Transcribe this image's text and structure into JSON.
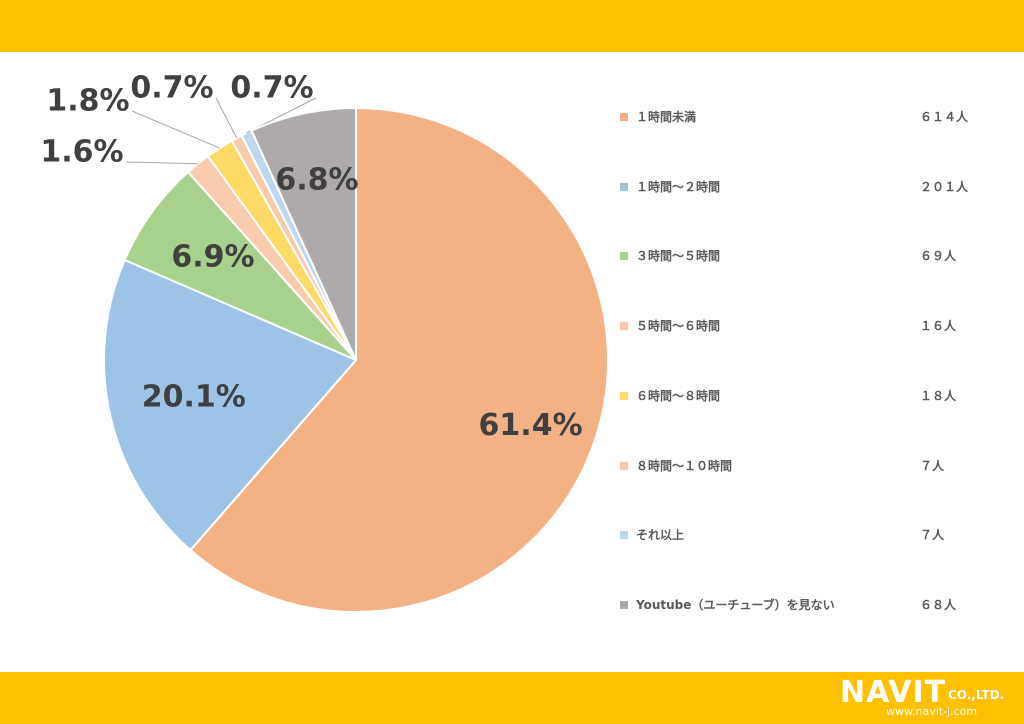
{
  "chart_data": {
    "type": "pie",
    "slices": [
      {
        "label": "１時間未満",
        "count": "６１４人",
        "value": 61.4,
        "value_label": "61.4%",
        "color": "#F4B183"
      },
      {
        "label": "１時間～２時間",
        "count": "２０１人",
        "value": 20.1,
        "value_label": "20.1%",
        "color": "#9DC3E6"
      },
      {
        "label": "３時間～５時間",
        "count": "６９人",
        "value": 6.9,
        "value_label": "6.9%",
        "color": "#A9D18E"
      },
      {
        "label": "５時間～６時間",
        "count": "１６人",
        "value": 1.6,
        "value_label": "1.6%",
        "color": "#F8CBAD"
      },
      {
        "label": "６時間～８時間",
        "count": "１８人",
        "value": 1.8,
        "value_label": "1.8%",
        "color": "#FFD966"
      },
      {
        "label": "８時間～１０時間",
        "count": "７人",
        "value": 0.7,
        "value_label": "0.7%",
        "color": "#F8CBAD"
      },
      {
        "label": "それ以上",
        "count": "７人",
        "value": 0.7,
        "value_label": "0.7%",
        "color": "#BDD7EE"
      },
      {
        "label": "Youtube（ユーチューブ）を見ない",
        "count": "６８人",
        "value": 6.8,
        "value_label": "6.8%",
        "color": "#AEAAAA"
      }
    ],
    "legend_position": "right"
  },
  "branding": {
    "logo_text": "NAVIT",
    "logo_suffix": "CO.,LTD.",
    "url": "www.navit-j.com"
  },
  "colors": {
    "band": "#FFC000",
    "label_text": "#404040"
  }
}
